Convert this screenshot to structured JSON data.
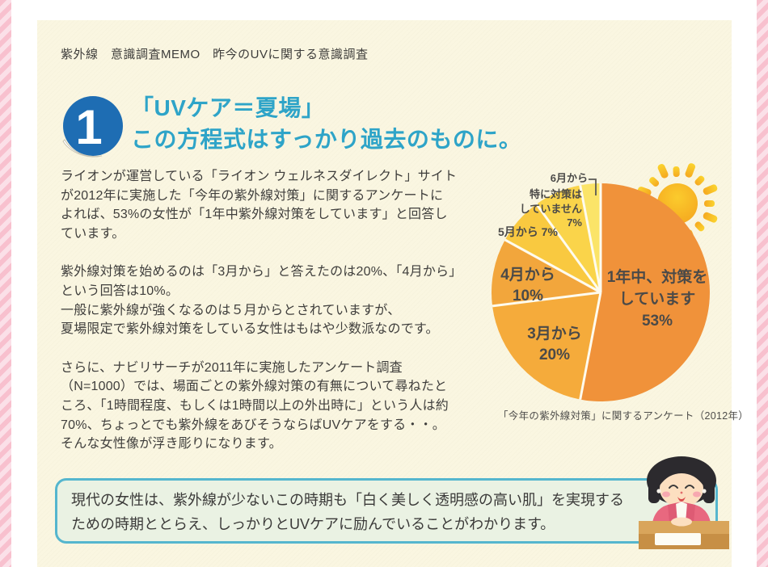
{
  "page": {
    "header": "紫外線　意識調査MEMO　昨今のUVに関する意識調査"
  },
  "section": {
    "number": "1",
    "title_line1": "「UVケア＝夏場」",
    "title_line2": "この方程式はすっかり過去のものに。"
  },
  "body": {
    "p1": [
      "ライオンが運営している「ライオン ウェルネスダイレクト」サイト",
      "が2012年に実施した「今年の紫外線対策」に関するアンケートに",
      "よれば、53%の女性が「1年中紫外線対策をしています」と回答し",
      "ています。"
    ],
    "p2": [
      "紫外線対策を始めるのは「3月から」と答えたのは20%、「4月から」",
      "という回答は10%。",
      "一般に紫外線が強くなるのは５月からとされていますが、",
      "夏場限定で紫外線対策をしている女性はもはや少数派なのです。"
    ],
    "p3": [
      "さらに、ナビリサーチが2011年に実施したアンケート調査",
      "（N=1000）では、場面ごとの紫外線対策の有無について尋ねたと",
      "ころ、「1時間程度、もしくは1時間以上の外出時に」という人は約",
      "70%、ちょっとでも紫外線をあびそうならばUVケアをする・・。",
      "そんな女性像が浮き彫りになります。"
    ]
  },
  "chart_data": {
    "type": "pie",
    "unit": "%",
    "start_angle_deg": 0,
    "direction": "clockwise",
    "caption": "「今年の紫外線対策」に関するアンケート（2012年）",
    "slices": [
      {
        "label": "1年中、対策をしています",
        "value": 53,
        "color": "#F0923A",
        "label_lines": [
          "1年中、対策を",
          "しています",
          "53%"
        ]
      },
      {
        "label": "3月から",
        "value": 20,
        "color": "#F5AB3B",
        "label_lines": [
          "3月から",
          "20%"
        ]
      },
      {
        "label": "4月から",
        "value": 10,
        "color": "#F2A63C",
        "label_lines": [
          "4月から",
          "10%"
        ]
      },
      {
        "label": "5月から",
        "value": 7,
        "color": "#F9C940",
        "label_lines": [
          "5月から 7%"
        ]
      },
      {
        "label": "特に対策はしていません",
        "value": 7,
        "color": "#FAD44A",
        "label_lines": [
          "特に対策は",
          "していません 7%"
        ]
      },
      {
        "label": "6月から",
        "value": 3,
        "color": "#FBE468",
        "label_lines": [
          "6月から"
        ]
      }
    ]
  },
  "conclusion": {
    "line1": "現代の女性は、紫外線が少ないこの時期も「白く美しく透明感の高い肌」を実現する",
    "line2": "ための時期ととらえ、しっかりとUVケアに励んでいることがわかります。"
  },
  "colors": {
    "panel_cream": "#FAF6E1",
    "stripe_pink_dark": "#F8C0CE",
    "stripe_pink_light": "#FBE0E8",
    "title_blue": "#2EA4C8",
    "badge_blue": "#1E6DB3",
    "box_border_blue": "#55B6CE",
    "box_bg_green": "#EAF2E3",
    "text_dark": "#3F3E3C"
  }
}
